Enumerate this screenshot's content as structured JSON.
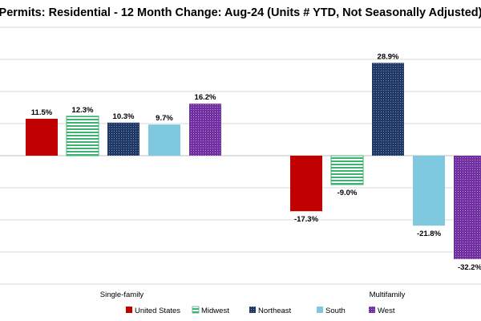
{
  "chart_data": {
    "type": "bar",
    "title": "Permits: Residential - 12 Month Change:  Aug-24 (Units # YTD, Not Seasonally Adjusted)",
    "categories": [
      "Single-family",
      "Multifamily"
    ],
    "series": [
      {
        "name": "United States",
        "values": [
          11.5,
          -17.3
        ],
        "labels": [
          "11.5%",
          "-17.3%"
        ],
        "color": "#c00000",
        "pattern": "solid"
      },
      {
        "name": "Midwest",
        "values": [
          12.3,
          -9.0
        ],
        "labels": [
          "12.3%",
          "-9.0%"
        ],
        "color": "#3cb371",
        "pattern": "horizontal-stripes"
      },
      {
        "name": "Northeast",
        "values": [
          10.3,
          28.9
        ],
        "labels": [
          "10.3%",
          "28.9%"
        ],
        "color": "#1f3864",
        "pattern": "dots"
      },
      {
        "name": "South",
        "values": [
          9.7,
          -21.8
        ],
        "labels": [
          "9.7%",
          "-21.8%"
        ],
        "color": "#7ec8e0",
        "pattern": "solid"
      },
      {
        "name": "West",
        "values": [
          16.2,
          -32.2
        ],
        "labels": [
          "16.2%",
          "-32.2%"
        ],
        "color": "#7030a0",
        "pattern": "dots"
      }
    ],
    "ylim": [
      -40,
      40
    ],
    "grid": true,
    "legend_position": "bottom"
  }
}
